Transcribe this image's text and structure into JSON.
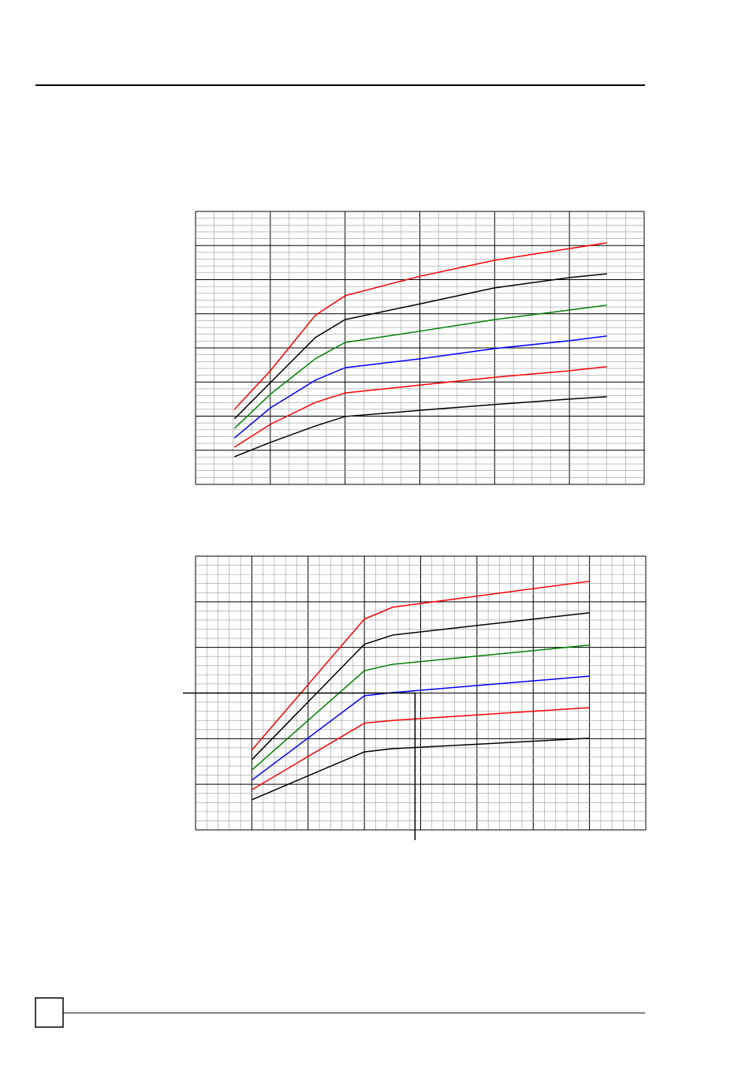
{
  "chart_data": [
    {
      "type": "line",
      "grid": true,
      "minor_grid": [
        4,
        5
      ],
      "xlim": [
        0,
        6
      ],
      "ylim": [
        0,
        8
      ],
      "x": [
        0.52,
        1,
        1.6,
        2,
        3,
        4,
        5,
        5.5
      ],
      "series": [
        {
          "color": "#ff0000",
          "values": [
            2.2,
            3.33,
            4.95,
            5.53,
            6.1,
            6.57,
            6.91,
            7.08
          ]
        },
        {
          "color": "#000000",
          "values": [
            1.92,
            2.98,
            4.3,
            4.83,
            5.29,
            5.76,
            6.06,
            6.17
          ]
        },
        {
          "color": "#008000",
          "values": [
            1.64,
            2.64,
            3.68,
            4.16,
            4.49,
            4.83,
            5.11,
            5.25
          ]
        },
        {
          "color": "#0000ff",
          "values": [
            1.36,
            2.24,
            3.05,
            3.42,
            3.68,
            3.98,
            4.21,
            4.35
          ]
        },
        {
          "color": "#ff0000",
          "values": [
            1.09,
            1.76,
            2.4,
            2.68,
            2.91,
            3.14,
            3.33,
            3.45
          ]
        },
        {
          "color": "#000000",
          "values": [
            0.81,
            1.23,
            1.71,
            1.99,
            2.17,
            2.34,
            2.5,
            2.57
          ]
        }
      ]
    },
    {
      "type": "line",
      "grid": true,
      "minor_grid": [
        5,
        5
      ],
      "xlim": [
        0,
        8
      ],
      "ylim": [
        0,
        6
      ],
      "x": [
        1,
        3,
        3.5,
        7
      ],
      "series": [
        {
          "color": "#ff0000",
          "values": [
            1.75,
            4.62,
            4.88,
            5.45
          ]
        },
        {
          "color": "#000000",
          "values": [
            1.54,
            4.07,
            4.27,
            4.76
          ]
        },
        {
          "color": "#008000",
          "values": [
            1.31,
            3.49,
            3.63,
            4.05
          ]
        },
        {
          "color": "#0000ff",
          "values": [
            1.09,
            2.94,
            3.01,
            3.37
          ]
        },
        {
          "color": "#ff0000",
          "values": [
            0.88,
            2.34,
            2.4,
            2.68
          ]
        },
        {
          "color": "#000000",
          "values": [
            0.66,
            1.71,
            1.78,
            2.01
          ]
        }
      ],
      "guide": {
        "x": 3.9,
        "y": 3
      }
    }
  ]
}
